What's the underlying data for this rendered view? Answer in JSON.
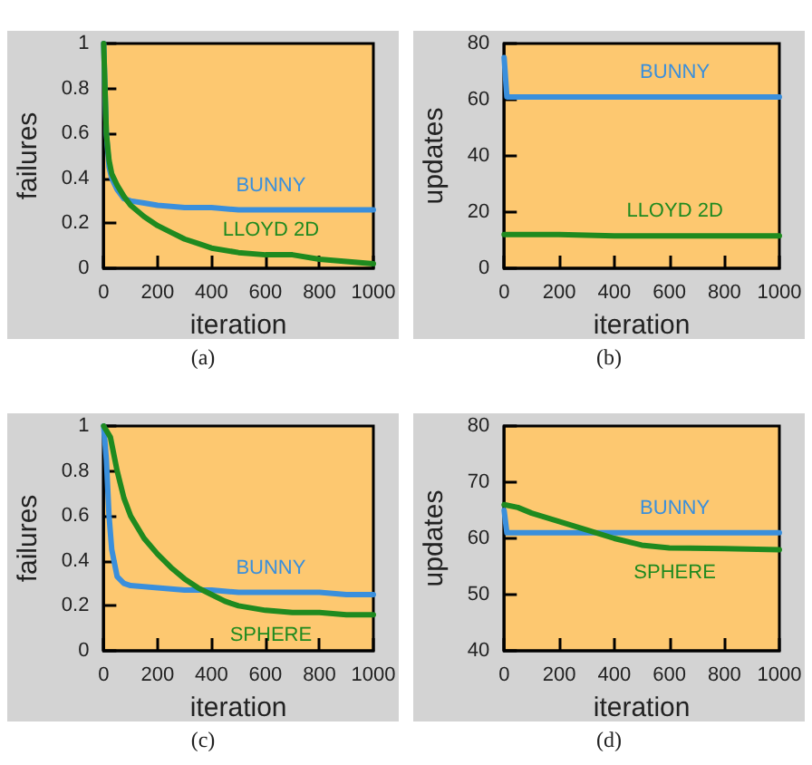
{
  "chart_data": [
    {
      "type": "line",
      "xlabel": "iteration",
      "ylabel": "failures",
      "annotations": [
        "(a)"
      ],
      "xlim": [
        0,
        1000
      ],
      "xticks": [
        0,
        200,
        400,
        600,
        800,
        1000
      ],
      "ylim": [
        0,
        1
      ],
      "yticks": [
        0,
        0.2,
        0.4,
        0.6,
        0.8,
        1
      ],
      "grid": false,
      "legend": false,
      "marker": "none",
      "series": [
        {
          "name": "BUNNY",
          "color": "#3a8fdc",
          "x": [
            0,
            10,
            20,
            30,
            50,
            75,
            100,
            150,
            200,
            300,
            400,
            500,
            600,
            700,
            800,
            900,
            1000
          ],
          "values": [
            1,
            0.6,
            0.45,
            0.4,
            0.35,
            0.31,
            0.3,
            0.29,
            0.28,
            0.27,
            0.27,
            0.26,
            0.26,
            0.26,
            0.26,
            0.26,
            0.26
          ]
        },
        {
          "name": "LLOYD 2D",
          "color": "#1f8a1f",
          "x": [
            0,
            10,
            20,
            30,
            50,
            75,
            100,
            150,
            200,
            250,
            300,
            350,
            400,
            500,
            600,
            700,
            800,
            900,
            1000
          ],
          "values": [
            1,
            0.6,
            0.48,
            0.42,
            0.37,
            0.32,
            0.28,
            0.23,
            0.19,
            0.16,
            0.13,
            0.11,
            0.09,
            0.07,
            0.06,
            0.06,
            0.04,
            0.03,
            0.02
          ]
        }
      ]
    },
    {
      "type": "line",
      "xlabel": "iteration",
      "ylabel": "updates",
      "annotations": [
        "(b)"
      ],
      "xlim": [
        0,
        1000
      ],
      "xticks": [
        0,
        200,
        400,
        600,
        800,
        1000
      ],
      "ylim": [
        0,
        80
      ],
      "yticks": [
        0,
        20,
        40,
        60,
        80
      ],
      "grid": false,
      "legend": false,
      "marker": "none",
      "series": [
        {
          "name": "BUNNY",
          "color": "#3a8fdc",
          "x": [
            0,
            10,
            200,
            400,
            600,
            800,
            1000
          ],
          "values": [
            75,
            61,
            61,
            61,
            61,
            61,
            61
          ]
        },
        {
          "name": "LLOYD 2D",
          "color": "#1f8a1f",
          "x": [
            0,
            200,
            400,
            600,
            800,
            1000
          ],
          "values": [
            12,
            12,
            11.5,
            11.5,
            11.5,
            11.5
          ]
        }
      ]
    },
    {
      "type": "line",
      "xlabel": "iteration",
      "ylabel": "failures",
      "annotations": [
        "(c)"
      ],
      "xlim": [
        0,
        1000
      ],
      "xticks": [
        0,
        200,
        400,
        600,
        800,
        1000
      ],
      "ylim": [
        0,
        1
      ],
      "yticks": [
        0,
        0.2,
        0.4,
        0.6,
        0.8,
        1
      ],
      "grid": false,
      "legend": false,
      "marker": "none",
      "series": [
        {
          "name": "BUNNY",
          "color": "#3a8fdc",
          "x": [
            0,
            10,
            20,
            30,
            50,
            75,
            100,
            200,
            300,
            400,
            500,
            600,
            700,
            800,
            900,
            1000
          ],
          "values": [
            1,
            0.85,
            0.6,
            0.45,
            0.33,
            0.3,
            0.29,
            0.28,
            0.27,
            0.27,
            0.26,
            0.26,
            0.26,
            0.26,
            0.25,
            0.25
          ]
        },
        {
          "name": "SPHERE",
          "color": "#1f8a1f",
          "x": [
            0,
            25,
            50,
            75,
            100,
            150,
            200,
            250,
            300,
            350,
            400,
            450,
            500,
            600,
            700,
            800,
            900,
            1000
          ],
          "values": [
            1,
            0.95,
            0.8,
            0.68,
            0.6,
            0.5,
            0.43,
            0.37,
            0.32,
            0.28,
            0.25,
            0.22,
            0.2,
            0.18,
            0.17,
            0.17,
            0.16,
            0.16
          ]
        }
      ]
    },
    {
      "type": "line",
      "xlabel": "iteration",
      "ylabel": "updates",
      "annotations": [
        "(d)"
      ],
      "xlim": [
        0,
        1000
      ],
      "xticks": [
        0,
        200,
        400,
        600,
        800,
        1000
      ],
      "ylim": [
        40,
        80
      ],
      "yticks": [
        40,
        50,
        60,
        70,
        80
      ],
      "grid": false,
      "legend": false,
      "marker": "none",
      "series": [
        {
          "name": "BUNNY",
          "color": "#3a8fdc",
          "x": [
            0,
            10,
            200,
            400,
            600,
            800,
            1000
          ],
          "values": [
            65,
            61,
            61,
            61,
            61,
            61,
            61
          ]
        },
        {
          "name": "SPHERE",
          "color": "#1f8a1f",
          "x": [
            0,
            50,
            100,
            200,
            300,
            400,
            500,
            600,
            800,
            1000
          ],
          "values": [
            66,
            65.5,
            64.5,
            63,
            61.5,
            60,
            58.8,
            58.3,
            58.2,
            58
          ]
        }
      ]
    }
  ]
}
